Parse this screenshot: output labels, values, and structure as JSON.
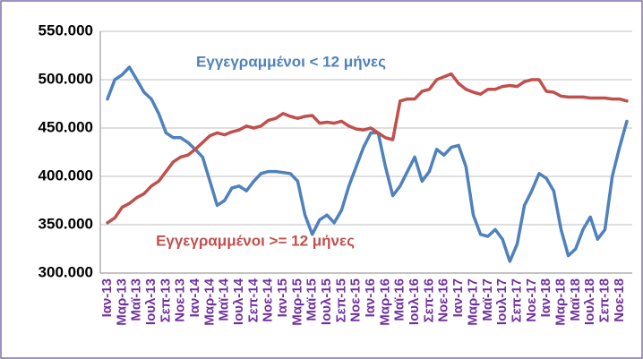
{
  "chart_data": {
    "type": "line",
    "annotations": [
      "Εγγεγραμμένοι < 12 μήνες",
      "Εγγεγραμμένοι >= 12 μήνες"
    ],
    "categories": [
      "Ιαν-13",
      null,
      "Μαρ-13",
      null,
      "Μαϊ-13",
      null,
      "Ιουλ-13",
      null,
      "Σεπ-13",
      null,
      "Νοε-13",
      null,
      "Ιαν-14",
      null,
      "Μαρ-14",
      null,
      "Μαϊ-14",
      null,
      "Ιουλ-14",
      null,
      "Σεπ-14",
      null,
      "Νοε-14",
      null,
      "Ιαν-15",
      null,
      "Μαρ-15",
      null,
      "Μαϊ-15",
      null,
      "Ιουλ-15",
      null,
      "Σεπ-15",
      null,
      "Νοε-15",
      null,
      "Ιαν-16",
      null,
      "Μαρ-16",
      null,
      "Μαϊ-16",
      null,
      "Ιουλ-16",
      null,
      "Σεπ-16",
      null,
      "Νοε-16",
      null,
      "Ιαν-17",
      null,
      "Μαρ-17",
      null,
      "Μαϊ-17",
      null,
      "Ιουλ-17",
      null,
      "Σεπ-17",
      null,
      "Νοε-17",
      null,
      "Ιαν-18",
      null,
      "Μαρ-18",
      null,
      "Μαϊ-18",
      null,
      "Ιουλ-18",
      null,
      "Σεπ-18",
      null,
      "Νοε-18",
      null
    ],
    "series": [
      {
        "color": "#4f81bd",
        "values": [
          480000,
          500000,
          505000,
          513000,
          500000,
          487000,
          480000,
          465000,
          445000,
          440000,
          440000,
          435000,
          428000,
          420000,
          395000,
          370000,
          375000,
          388000,
          390000,
          385000,
          395000,
          403000,
          405000,
          405000,
          404000,
          403000,
          395000,
          360000,
          340000,
          355000,
          360000,
          352000,
          365000,
          390000,
          410000,
          430000,
          445000,
          445000,
          410000,
          380000,
          390000,
          405000,
          420000,
          395000,
          405000,
          428000,
          422000,
          430000,
          432000,
          410000,
          360000,
          340000,
          338000,
          345000,
          335000,
          312000,
          330000,
          370000,
          385000,
          403000,
          398000,
          385000,
          345000,
          318000,
          325000,
          345000,
          358000,
          335000,
          345000,
          400000,
          430000,
          457000
        ]
      },
      {
        "color": "#c0504d",
        "values": [
          352000,
          357000,
          368000,
          372000,
          378000,
          382000,
          390000,
          395000,
          405000,
          415000,
          420000,
          422000,
          428000,
          435000,
          442000,
          445000,
          443000,
          446000,
          448000,
          452000,
          450000,
          452000,
          458000,
          460000,
          465000,
          462000,
          460000,
          462000,
          463000,
          455000,
          456000,
          455000,
          457000,
          452000,
          449000,
          448000,
          450000,
          445000,
          440000,
          438000,
          478000,
          480000,
          480000,
          488000,
          490000,
          500000,
          503000,
          506000,
          496000,
          490000,
          487000,
          485000,
          490000,
          490000,
          493000,
          494000,
          493000,
          498000,
          500000,
          500000,
          488000,
          487000,
          483000,
          482000,
          482000,
          482000,
          481000,
          481000,
          481000,
          480000,
          480000,
          478000
        ]
      }
    ],
    "ylim": [
      300000,
      550000
    ],
    "yticks": [
      {
        "value": 300000,
        "label": "300.000"
      },
      {
        "value": 350000,
        "label": "350.000"
      },
      {
        "value": 400000,
        "label": "400.000"
      },
      {
        "value": 450000,
        "label": "450.000"
      },
      {
        "value": 500000,
        "label": "500.000"
      },
      {
        "value": 550000,
        "label": "550.000"
      }
    ],
    "grid": true
  }
}
